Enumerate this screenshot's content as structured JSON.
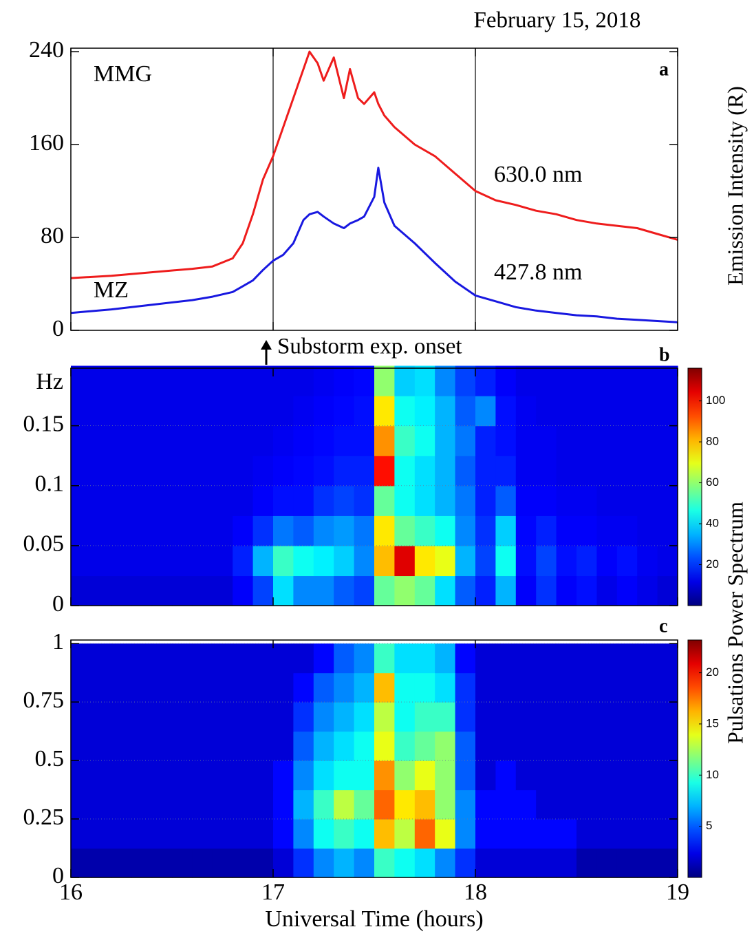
{
  "chart_data": [
    {
      "type": "line",
      "title": "February 15, 2018",
      "panel": "a",
      "ylabel": "Emission Intensity  (R)",
      "stations": [
        "MMG",
        "MZ"
      ],
      "onset_label": "Substorm exp. onset",
      "x": [
        16.0,
        16.2,
        16.4,
        16.6,
        16.7,
        16.8,
        16.85,
        16.9,
        16.95,
        17.0,
        17.05,
        17.1,
        17.15,
        17.18,
        17.22,
        17.25,
        17.3,
        17.35,
        17.38,
        17.42,
        17.45,
        17.5,
        17.52,
        17.55,
        17.6,
        17.7,
        17.8,
        17.9,
        18.0,
        18.1,
        18.2,
        18.3,
        18.4,
        18.5,
        18.6,
        18.7,
        18.8,
        18.9,
        19.0
      ],
      "series": [
        {
          "name": "630.0 nm",
          "color": "#ee1c1c",
          "values": [
            45,
            47,
            50,
            53,
            55,
            62,
            75,
            100,
            130,
            150,
            175,
            200,
            225,
            240,
            230,
            215,
            235,
            200,
            225,
            200,
            195,
            205,
            195,
            185,
            175,
            160,
            150,
            135,
            120,
            112,
            108,
            103,
            100,
            95,
            92,
            90,
            88,
            83,
            78
          ]
        },
        {
          "name": "427.8 nm",
          "color": "#1818e0",
          "values": [
            15,
            18,
            22,
            26,
            29,
            33,
            38,
            43,
            52,
            60,
            65,
            75,
            95,
            100,
            102,
            98,
            92,
            88,
            92,
            95,
            98,
            115,
            140,
            110,
            90,
            75,
            58,
            42,
            30,
            25,
            20,
            17,
            15,
            13,
            12,
            10,
            9,
            8,
            7
          ]
        }
      ],
      "xlim": [
        16,
        19
      ],
      "xticks": [
        16,
        17,
        18,
        19
      ],
      "ylim": [
        0,
        243
      ],
      "yticks": [
        0,
        80,
        160,
        240
      ],
      "vlines": [
        17,
        18
      ]
    },
    {
      "type": "heatmap",
      "panel": "b",
      "ylabel_top": "Hz",
      "colormap": "jet",
      "grid": true,
      "clabel": "Pulsations Power Spectrum",
      "x": [
        16.05,
        16.15,
        16.25,
        16.35,
        16.45,
        16.55,
        16.65,
        16.75,
        16.85,
        16.95,
        17.05,
        17.15,
        17.25,
        17.35,
        17.45,
        17.55,
        17.65,
        17.75,
        17.85,
        17.95,
        18.05,
        18.15,
        18.25,
        18.35,
        18.45,
        18.55,
        18.65,
        18.75,
        18.85,
        18.95
      ],
      "y": [
        0.0125,
        0.0375,
        0.0625,
        0.0875,
        0.1125,
        0.1375,
        0.1625,
        0.1875
      ],
      "z": [
        [
          10,
          10,
          10,
          10,
          10,
          10,
          10,
          10,
          14,
          22,
          40,
          30,
          30,
          25,
          22,
          55,
          60,
          55,
          40,
          25,
          18,
          35,
          14,
          20,
          14,
          16,
          12,
          14,
          12,
          10
        ],
        [
          12,
          12,
          12,
          12,
          12,
          12,
          12,
          12,
          18,
          35,
          50,
          45,
          42,
          38,
          30,
          80,
          105,
          75,
          70,
          35,
          22,
          45,
          16,
          22,
          16,
          18,
          14,
          16,
          13,
          12
        ],
        [
          12,
          12,
          12,
          12,
          12,
          12,
          12,
          12,
          14,
          20,
          28,
          25,
          30,
          32,
          28,
          75,
          55,
          50,
          45,
          30,
          20,
          38,
          15,
          18,
          14,
          14,
          13,
          13,
          12,
          12
        ],
        [
          12,
          12,
          12,
          12,
          12,
          12,
          12,
          12,
          12,
          14,
          16,
          16,
          20,
          22,
          20,
          55,
          45,
          40,
          35,
          28,
          18,
          25,
          14,
          14,
          13,
          13,
          12,
          12,
          12,
          12
        ],
        [
          12,
          12,
          12,
          12,
          12,
          12,
          12,
          12,
          12,
          13,
          14,
          15,
          16,
          18,
          18,
          100,
          45,
          40,
          35,
          25,
          18,
          18,
          13,
          13,
          12,
          12,
          12,
          12,
          12,
          12
        ],
        [
          12,
          12,
          12,
          12,
          12,
          12,
          12,
          12,
          12,
          12,
          13,
          14,
          15,
          16,
          16,
          85,
          50,
          45,
          35,
          28,
          18,
          16,
          13,
          13,
          12,
          12,
          12,
          12,
          12,
          12
        ],
        [
          12,
          12,
          12,
          12,
          12,
          12,
          12,
          12,
          12,
          12,
          12,
          13,
          14,
          15,
          16,
          75,
          45,
          42,
          35,
          25,
          30,
          16,
          13,
          12,
          12,
          12,
          12,
          12,
          12,
          12
        ],
        [
          12,
          12,
          12,
          12,
          12,
          12,
          12,
          12,
          12,
          12,
          12,
          12,
          13,
          14,
          15,
          60,
          38,
          40,
          30,
          22,
          18,
          14,
          12,
          12,
          12,
          12,
          12,
          12,
          12,
          12
        ]
      ],
      "xlim": [
        16,
        19
      ],
      "xticks": [
        16,
        17,
        18,
        19
      ],
      "ylim": [
        0,
        0.198
      ],
      "yticks": [
        0,
        0.05,
        0.1,
        0.15
      ],
      "clim": [
        0,
        116
      ],
      "cticks": [
        20,
        40,
        60,
        80,
        100
      ]
    },
    {
      "type": "heatmap",
      "panel": "c",
      "colormap": "jet",
      "grid": true,
      "xlabel": "Universal Time (hours)",
      "x": [
        16.05,
        16.15,
        16.25,
        16.35,
        16.45,
        16.55,
        16.65,
        16.75,
        16.85,
        16.95,
        17.05,
        17.15,
        17.25,
        17.35,
        17.45,
        17.55,
        17.65,
        17.75,
        17.85,
        17.95,
        18.05,
        18.15,
        18.25,
        18.35,
        18.45,
        18.55,
        18.65,
        18.75,
        18.85,
        18.95
      ],
      "y": [
        0.0625,
        0.1875,
        0.3125,
        0.4375,
        0.5625,
        0.6875,
        0.8125,
        0.9375
      ],
      "z": [
        [
          1,
          1,
          1,
          1,
          1,
          1,
          1,
          1,
          1,
          1,
          2,
          4,
          6,
          7,
          6,
          10,
          9,
          8,
          6,
          4,
          2,
          2,
          2,
          2,
          2,
          1,
          1,
          1,
          1,
          1
        ],
        [
          2,
          2,
          2,
          2,
          2,
          2,
          2,
          2,
          2,
          2,
          3,
          6,
          9,
          10,
          9,
          16,
          13,
          18,
          14,
          6,
          3,
          3,
          3,
          3,
          3,
          2,
          2,
          2,
          2,
          2
        ],
        [
          2,
          2,
          2,
          2,
          2,
          2,
          2,
          2,
          2,
          2,
          3,
          7,
          10,
          13,
          11,
          18,
          15,
          16,
          12,
          6,
          3,
          3,
          3,
          2,
          2,
          2,
          2,
          2,
          2,
          2
        ],
        [
          2,
          2,
          2,
          2,
          2,
          2,
          2,
          2,
          2,
          2,
          3,
          6,
          8,
          9,
          9,
          17,
          12,
          14,
          12,
          5,
          2,
          3,
          2,
          2,
          2,
          2,
          2,
          2,
          2,
          2
        ],
        [
          2,
          2,
          2,
          2,
          2,
          2,
          2,
          2,
          2,
          2,
          2,
          5,
          7,
          8,
          9,
          14,
          10,
          11,
          12,
          5,
          2,
          2,
          2,
          2,
          2,
          2,
          2,
          2,
          2,
          2
        ],
        [
          2,
          2,
          2,
          2,
          2,
          2,
          2,
          2,
          2,
          2,
          2,
          4,
          6,
          7,
          8,
          13,
          9,
          10,
          10,
          4,
          2,
          2,
          2,
          2,
          2,
          2,
          2,
          2,
          2,
          2
        ],
        [
          2,
          2,
          2,
          2,
          2,
          2,
          2,
          2,
          2,
          2,
          2,
          3,
          5,
          6,
          7,
          16,
          9,
          9,
          8,
          4,
          2,
          2,
          2,
          2,
          2,
          2,
          2,
          2,
          2,
          2
        ],
        [
          2,
          2,
          2,
          2,
          2,
          2,
          2,
          2,
          2,
          2,
          2,
          2,
          3,
          5,
          6,
          10,
          8,
          8,
          7,
          3,
          2,
          2,
          2,
          2,
          2,
          2,
          2,
          2,
          2,
          2
        ]
      ],
      "xlim": [
        16,
        19
      ],
      "xticks": [
        16,
        17,
        18,
        19
      ],
      "ylim": [
        0,
        1.015
      ],
      "yticks": [
        0,
        0.25,
        0.5,
        0.75,
        1
      ],
      "clim": [
        0,
        23.2
      ],
      "cticks": [
        5,
        10,
        15,
        20
      ]
    }
  ]
}
